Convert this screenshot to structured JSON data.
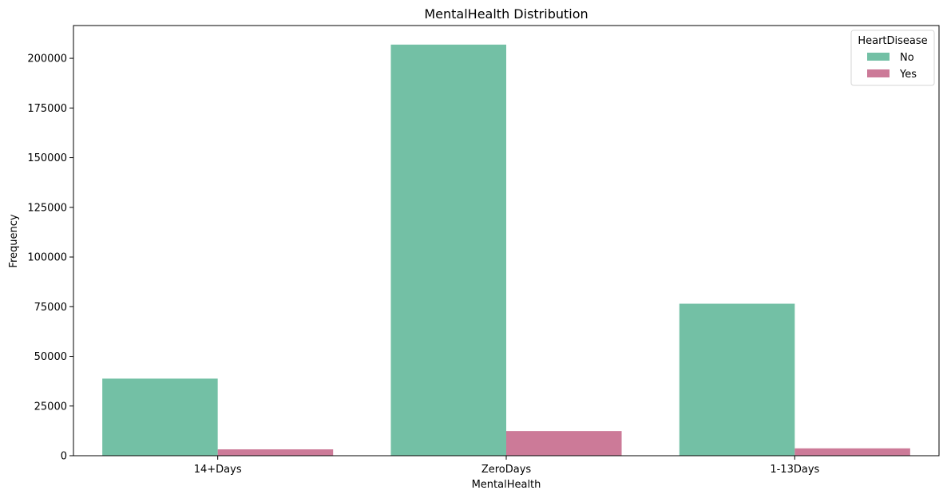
{
  "chart_data": {
    "type": "bar",
    "title": "MentalHealth Distribution",
    "xlabel": "MentalHealth",
    "ylabel": "Frequency",
    "categories": [
      "14+Days",
      "ZeroDays",
      "1-13Days"
    ],
    "series": [
      {
        "name": "No",
        "color": "#73c0a5",
        "values": [
          38800,
          206900,
          76500
        ]
      },
      {
        "name": "Yes",
        "color": "#cc7a98",
        "values": [
          3200,
          12400,
          3700
        ]
      }
    ],
    "ylim": [
      0,
      216500
    ],
    "yticks": [
      0,
      25000,
      50000,
      75000,
      100000,
      125000,
      150000,
      175000,
      200000
    ],
    "ytick_labels": [
      "0",
      "25000",
      "50000",
      "75000",
      "100000",
      "125000",
      "150000",
      "175000",
      "200000"
    ],
    "legend": {
      "title": "HeartDisease",
      "placement": "top-right"
    },
    "grid": false
  }
}
